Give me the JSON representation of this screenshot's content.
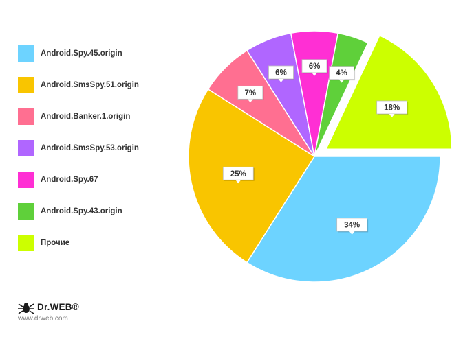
{
  "chart_data": {
    "type": "pie",
    "title": "",
    "legend_position": "left",
    "slices": [
      {
        "name": "Android.Spy.45.origin",
        "value": 34,
        "label": "34%",
        "color": "#6dd3ff"
      },
      {
        "name": "Android.SmsSpy.51.origin",
        "value": 25,
        "label": "25%",
        "color": "#f9c500"
      },
      {
        "name": "Android.Banker.1.origin",
        "value": 7,
        "label": "7%",
        "color": "#ff6f91"
      },
      {
        "name": "Android.SmsSpy.53.origin",
        "value": 6,
        "label": "6%",
        "color": "#b066ff"
      },
      {
        "name": "Android.Spy.67",
        "value": 6,
        "label": "6%",
        "color": "#ff2fd4"
      },
      {
        "name": "Android.Spy.43.origin",
        "value": 4,
        "label": "4%",
        "color": "#5fd03a"
      },
      {
        "name": "Прочие",
        "value": 18,
        "label": "18%",
        "color": "#ccff00",
        "exploded": true
      }
    ]
  },
  "logo": {
    "brand": "Dr.WEB®",
    "url": "www.drweb.com"
  }
}
